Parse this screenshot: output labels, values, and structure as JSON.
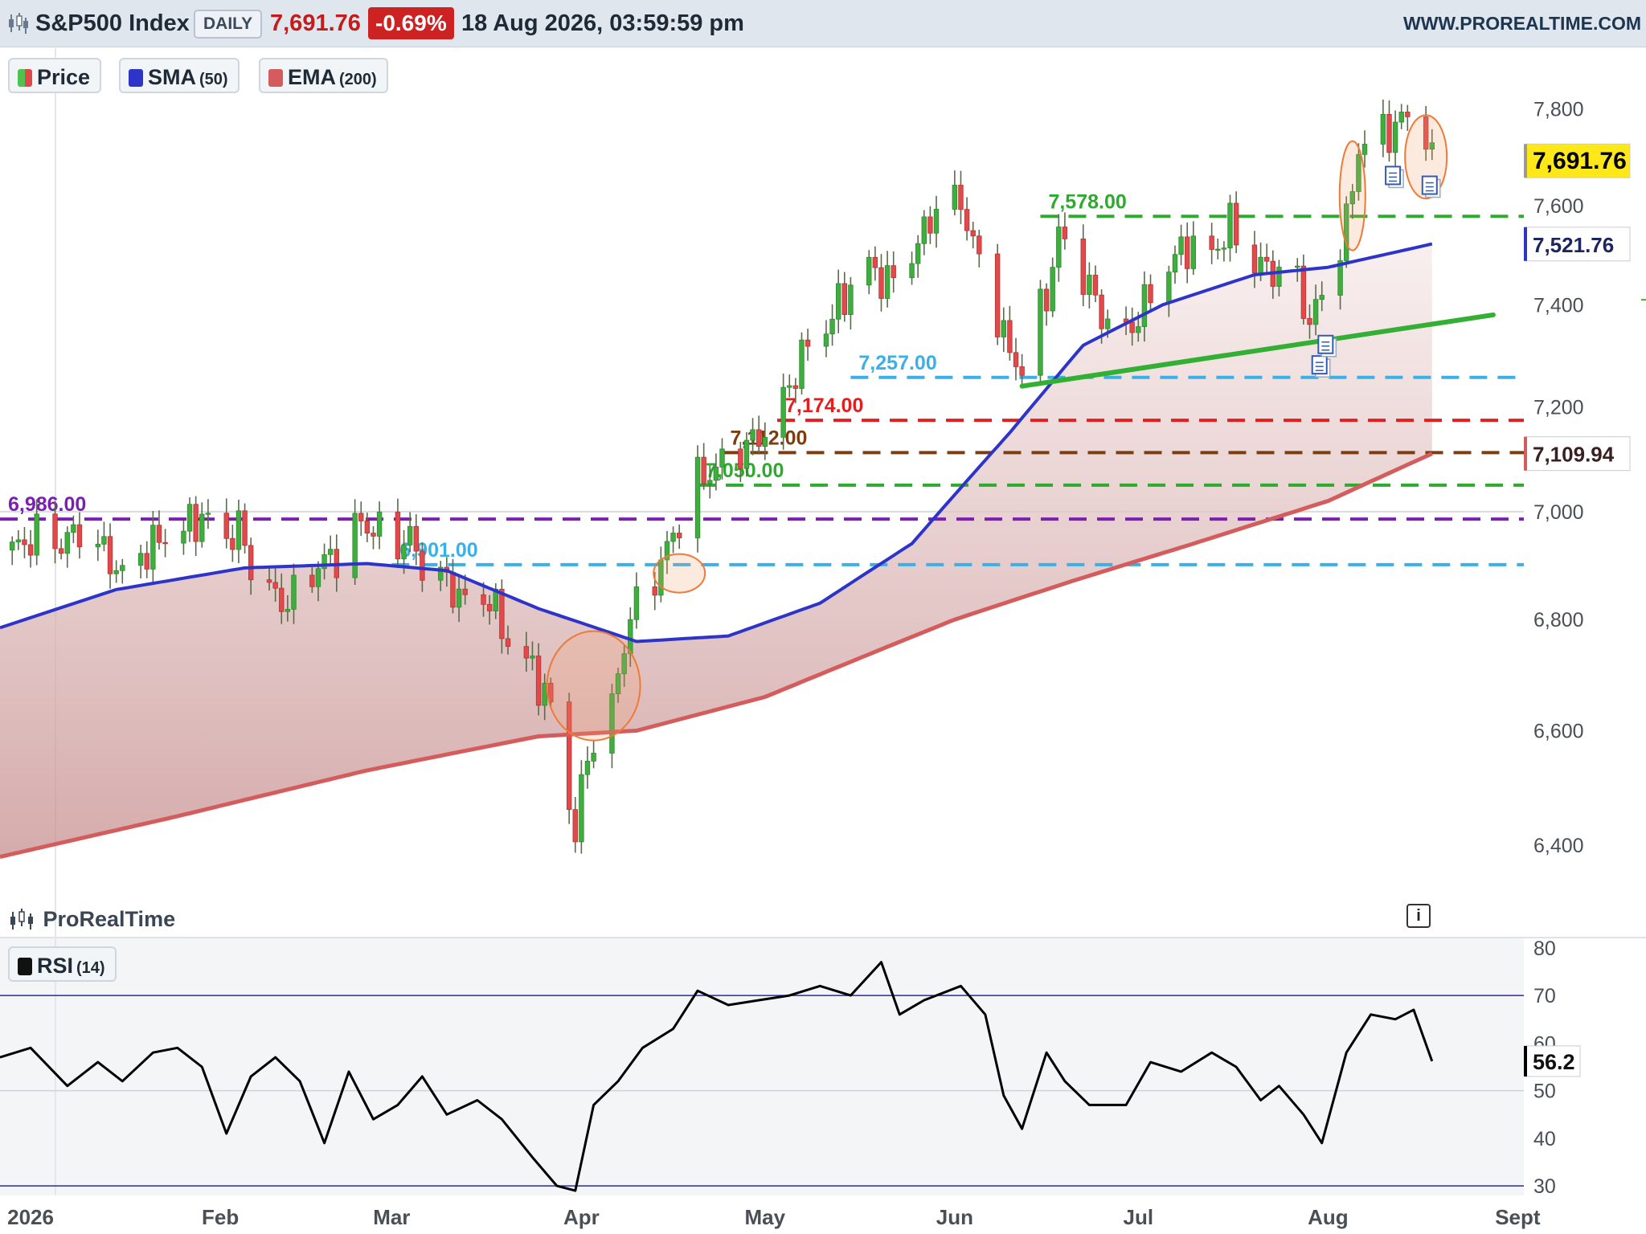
{
  "header": {
    "symbol_title": "S&P500 Index",
    "timeframe": "DAILY",
    "last_price": "7,691.76",
    "change_pct": "-0.69%",
    "datetime": "18 Aug 2026, 03:59:59 pm",
    "website": "WWW.PROREALTIME.COM"
  },
  "legend": {
    "price": {
      "label": "Price",
      "color": "#4fc24f"
    },
    "sma": {
      "label": "SMA",
      "param": "(50)",
      "color": "#2e34c8"
    },
    "ema": {
      "label": "EMA",
      "param": "(200)",
      "color": "#d45c5c"
    },
    "rsi": {
      "label": "RSI",
      "param": "(14)",
      "color": "#000000"
    }
  },
  "branding": {
    "label": "ProRealTime"
  },
  "info_icon": "i",
  "chart_data": {
    "type": "candlestick",
    "price_axis": {
      "range": [
        6300,
        7860
      ],
      "ticks": [
        "7,800",
        "7,600",
        "7,400",
        "7,200",
        "7,000",
        "6,800",
        "6,600",
        "6,400"
      ],
      "tick_values": [
        7800,
        7600,
        7400,
        7200,
        7000,
        6800,
        6600,
        6400
      ],
      "scale": "log"
    },
    "x_axis": {
      "range": [
        "2025-12-27",
        "2026-09-02"
      ],
      "labels": [
        "2026",
        "Feb",
        "Mar",
        "Apr",
        "May",
        "Jun",
        "Jul",
        "Aug",
        "Sept"
      ],
      "label_dates": [
        "2026-01-01",
        "2026-02-01",
        "2026-03-01",
        "2026-04-01",
        "2026-05-01",
        "2026-06-01",
        "2026-07-01",
        "2026-08-01",
        "2026-09-01"
      ]
    },
    "price_series": [
      [
        "2025-12-29",
        6928
      ],
      [
        "2026-01-02",
        6955
      ],
      [
        "2026-01-06",
        6940
      ],
      [
        "2026-01-09",
        6965
      ],
      [
        "2026-01-13",
        6925
      ],
      [
        "2026-01-16",
        6880
      ],
      [
        "2026-01-20",
        6930
      ],
      [
        "2026-01-23",
        6955
      ],
      [
        "2026-01-27",
        6975
      ],
      [
        "2026-01-29",
        6990
      ],
      [
        "2026-02-02",
        6950
      ],
      [
        "2026-02-04",
        6970
      ],
      [
        "2026-02-06",
        6900
      ],
      [
        "2026-02-10",
        6840
      ],
      [
        "2026-02-12",
        6830
      ],
      [
        "2026-02-17",
        6900
      ],
      [
        "2026-02-20",
        6920
      ],
      [
        "2026-02-24",
        6980
      ],
      [
        "2026-02-27",
        6960
      ],
      [
        "2026-03-02",
        6940
      ],
      [
        "2026-03-04",
        6950
      ],
      [
        "2026-03-06",
        6900
      ],
      [
        "2026-03-10",
        6870
      ],
      [
        "2026-03-13",
        6830
      ],
      [
        "2026-03-17",
        6840
      ],
      [
        "2026-03-20",
        6760
      ],
      [
        "2026-03-24",
        6710
      ],
      [
        "2026-03-27",
        6640
      ],
      [
        "2026-03-31",
        6420
      ],
      [
        "2026-04-02",
        6560
      ],
      [
        "2026-04-06",
        6640
      ],
      [
        "2026-04-08",
        6760
      ],
      [
        "2026-04-10",
        6830
      ],
      [
        "2026-04-14",
        6900
      ],
      [
        "2026-04-16",
        6960
      ],
      [
        "2026-04-20",
        7060
      ],
      [
        "2026-04-23",
        7080
      ],
      [
        "2026-04-27",
        7120
      ],
      [
        "2026-04-30",
        7140
      ],
      [
        "2026-05-04",
        7210
      ],
      [
        "2026-05-07",
        7300
      ],
      [
        "2026-05-11",
        7360
      ],
      [
        "2026-05-14",
        7420
      ],
      [
        "2026-05-18",
        7480
      ],
      [
        "2026-05-21",
        7440
      ],
      [
        "2026-05-26",
        7520
      ],
      [
        "2026-05-29",
        7600
      ],
      [
        "2026-06-02",
        7610
      ],
      [
        "2026-06-04",
        7520
      ],
      [
        "2026-06-08",
        7380
      ],
      [
        "2026-06-10",
        7300
      ],
      [
        "2026-06-12",
        7280
      ],
      [
        "2026-06-16",
        7420
      ],
      [
        "2026-06-18",
        7540
      ],
      [
        "2026-06-22",
        7460
      ],
      [
        "2026-06-25",
        7380
      ],
      [
        "2026-06-29",
        7340
      ],
      [
        "2026-07-02",
        7400
      ],
      [
        "2026-07-06",
        7480
      ],
      [
        "2026-07-09",
        7520
      ],
      [
        "2026-07-13",
        7500
      ],
      [
        "2026-07-16",
        7560
      ],
      [
        "2026-07-20",
        7480
      ],
      [
        "2026-07-23",
        7470
      ],
      [
        "2026-07-27",
        7450
      ],
      [
        "2026-07-29",
        7360
      ],
      [
        "2026-07-31",
        7420
      ],
      [
        "2026-08-04",
        7560
      ],
      [
        "2026-08-06",
        7720
      ],
      [
        "2026-08-10",
        7750
      ],
      [
        "2026-08-12",
        7760
      ],
      [
        "2026-08-14",
        7790
      ],
      [
        "2026-08-17",
        7745
      ],
      [
        "2026-08-18",
        7692
      ]
    ],
    "sma50": [
      [
        "2025-12-27",
        6785
      ],
      [
        "2026-01-15",
        6855
      ],
      [
        "2026-02-05",
        6895
      ],
      [
        "2026-02-25",
        6903
      ],
      [
        "2026-03-10",
        6890
      ],
      [
        "2026-03-25",
        6820
      ],
      [
        "2026-04-10",
        6760
      ],
      [
        "2026-04-25",
        6770
      ],
      [
        "2026-05-10",
        6830
      ],
      [
        "2026-05-25",
        6940
      ],
      [
        "2026-06-10",
        7150
      ],
      [
        "2026-06-22",
        7320
      ],
      [
        "2026-07-05",
        7400
      ],
      [
        "2026-07-20",
        7460
      ],
      [
        "2026-08-01",
        7475
      ],
      [
        "2026-08-18",
        7522
      ]
    ],
    "ema200": [
      [
        "2025-12-27",
        6380
      ],
      [
        "2026-01-25",
        6450
      ],
      [
        "2026-02-25",
        6530
      ],
      [
        "2026-03-25",
        6590
      ],
      [
        "2026-04-10",
        6600
      ],
      [
        "2026-05-01",
        6660
      ],
      [
        "2026-06-01",
        6800
      ],
      [
        "2026-06-20",
        6870
      ],
      [
        "2026-07-10",
        6940
      ],
      [
        "2026-08-01",
        7020
      ],
      [
        "2026-08-18",
        7110
      ]
    ],
    "horizontal_levels": [
      {
        "label": "7,578.00",
        "value": 7578,
        "color": "#2eaa2e",
        "from": "2026-06-15"
      },
      {
        "label": "7,257.00",
        "value": 7257,
        "color": "#3ab0e6",
        "from": "2026-05-15"
      },
      {
        "label": "7,174.00",
        "value": 7174,
        "color": "#e02020",
        "from": "2026-05-03"
      },
      {
        "label": "7,112.00",
        "value": 7112,
        "color": "#7a3e12",
        "from": "2026-04-24"
      },
      {
        "label": "7,050.00",
        "value": 7050,
        "color": "#2eaa2e",
        "from": "2026-04-20"
      },
      {
        "label": "6,986.00",
        "value": 6986,
        "color": "#7a1fb0",
        "from": "2025-12-27"
      },
      {
        "label": "6,901.00",
        "value": 6901,
        "color": "#3ab0e6",
        "from": "2026-03-01"
      }
    ],
    "trendline": {
      "color": "#33b033",
      "points": [
        [
          "2026-06-12",
          7240
        ],
        [
          "2026-08-28",
          7380
        ]
      ]
    },
    "highlight_ellipses": [
      {
        "date": "2026-04-03",
        "value": 6680
      },
      {
        "date": "2026-04-17",
        "value": 6885
      },
      {
        "date": "2026-08-05",
        "value": 7620
      },
      {
        "date": "2026-08-17",
        "value": 7700
      }
    ],
    "event_markers": [
      {
        "date": "2026-07-31",
        "value": 7280
      },
      {
        "date": "2026-08-01",
        "value": 7320
      },
      {
        "date": "2026-08-12",
        "value": 7660
      },
      {
        "date": "2026-08-18",
        "value": 7640
      }
    ],
    "price_labels": [
      {
        "label": "7,691.76",
        "value": 7691.76,
        "style": "last"
      },
      {
        "label": "7,521.76",
        "value": 7521.76,
        "style": "sma"
      },
      {
        "label": "7,109.94",
        "value": 7109.94,
        "style": "ema"
      }
    ],
    "rsi": {
      "range": [
        28,
        82
      ],
      "ticks": [
        "80",
        "70",
        "60",
        "50",
        "40",
        "30"
      ],
      "tick_values": [
        80,
        70,
        60,
        50,
        40,
        30
      ],
      "overbought": 70,
      "oversold": 30,
      "last_label": "56.2",
      "last_value": 56.2,
      "series": [
        [
          "2025-12-27",
          57
        ],
        [
          "2026-01-01",
          59
        ],
        [
          "2026-01-07",
          51
        ],
        [
          "2026-01-12",
          56
        ],
        [
          "2026-01-16",
          52
        ],
        [
          "2026-01-21",
          58
        ],
        [
          "2026-01-25",
          59
        ],
        [
          "2026-01-29",
          55
        ],
        [
          "2026-02-02",
          41
        ],
        [
          "2026-02-06",
          53
        ],
        [
          "2026-02-10",
          57
        ],
        [
          "2026-02-14",
          52
        ],
        [
          "2026-02-18",
          39
        ],
        [
          "2026-02-22",
          54
        ],
        [
          "2026-02-26",
          44
        ],
        [
          "2026-03-02",
          47
        ],
        [
          "2026-03-06",
          53
        ],
        [
          "2026-03-10",
          45
        ],
        [
          "2026-03-15",
          48
        ],
        [
          "2026-03-19",
          44
        ],
        [
          "2026-03-24",
          36
        ],
        [
          "2026-03-28",
          30
        ],
        [
          "2026-03-31",
          29
        ],
        [
          "2026-04-03",
          47
        ],
        [
          "2026-04-07",
          52
        ],
        [
          "2026-04-11",
          59
        ],
        [
          "2026-04-16",
          63
        ],
        [
          "2026-04-20",
          71
        ],
        [
          "2026-04-25",
          68
        ],
        [
          "2026-04-30",
          69
        ],
        [
          "2026-05-05",
          70
        ],
        [
          "2026-05-10",
          72
        ],
        [
          "2026-05-15",
          70
        ],
        [
          "2026-05-20",
          77
        ],
        [
          "2026-05-23",
          66
        ],
        [
          "2026-05-27",
          69
        ],
        [
          "2026-06-02",
          72
        ],
        [
          "2026-06-06",
          66
        ],
        [
          "2026-06-09",
          49
        ],
        [
          "2026-06-12",
          42
        ],
        [
          "2026-06-16",
          58
        ],
        [
          "2026-06-19",
          52
        ],
        [
          "2026-06-23",
          47
        ],
        [
          "2026-06-29",
          47
        ],
        [
          "2026-07-03",
          56
        ],
        [
          "2026-07-08",
          54
        ],
        [
          "2026-07-13",
          58
        ],
        [
          "2026-07-17",
          55
        ],
        [
          "2026-07-21",
          48
        ],
        [
          "2026-07-24",
          51
        ],
        [
          "2026-07-28",
          45
        ],
        [
          "2026-07-31",
          39
        ],
        [
          "2026-08-04",
          58
        ],
        [
          "2026-08-08",
          66
        ],
        [
          "2026-08-12",
          65
        ],
        [
          "2026-08-15",
          67
        ],
        [
          "2026-08-18",
          56.2
        ]
      ]
    }
  }
}
